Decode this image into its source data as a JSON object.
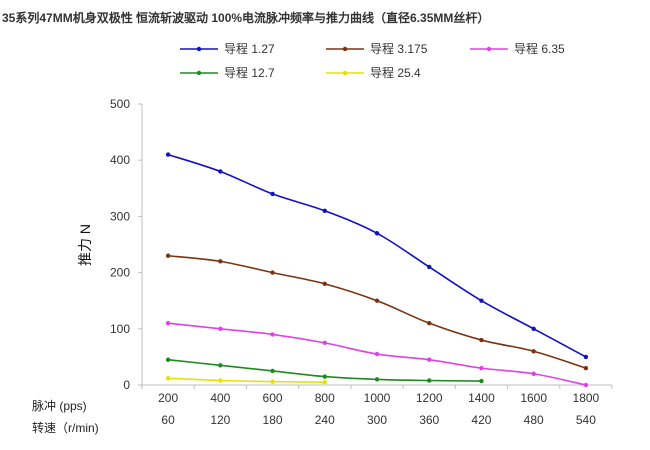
{
  "chart_data": {
    "type": "line",
    "title": "35系列47MM机身双极性 恒流斩波驱动 100%电流脉冲频率与推力曲线（直径6.35MM丝杆）",
    "ylabel": "推力  N",
    "xlabel": "",
    "ylim": [
      0,
      500
    ],
    "yticks": [
      0,
      100,
      200,
      300,
      400,
      500
    ],
    "grid": false,
    "legend_position": "top",
    "categories": [
      "200",
      "400",
      "600",
      "800",
      "1000",
      "1200",
      "1400",
      "1600",
      "1800"
    ],
    "secondary_categories": [
      "60",
      "120",
      "180",
      "240",
      "300",
      "360",
      "420",
      "480",
      "540"
    ],
    "x_row_label_primary": "脉冲     (pps)",
    "x_row_label_secondary": "转速（r/min)",
    "series": [
      {
        "name": "导程 1.27",
        "color": "#1010c8",
        "values": [
          410,
          380,
          340,
          310,
          270,
          210,
          150,
          100,
          50
        ]
      },
      {
        "name": "导程 3.175",
        "color": "#7a3310",
        "values": [
          230,
          220,
          200,
          180,
          150,
          110,
          80,
          60,
          30
        ]
      },
      {
        "name": "导程  6.35",
        "color": "#e040e8",
        "values": [
          110,
          100,
          90,
          75,
          55,
          45,
          30,
          20,
          0
        ]
      },
      {
        "name": "导程   12.7",
        "color": "#1e8a1e",
        "values": [
          45,
          35,
          25,
          15,
          10,
          8,
          7,
          null,
          null
        ]
      },
      {
        "name": "导程   25.4",
        "color": "#e8e000",
        "values": [
          12,
          8,
          6,
          5,
          null,
          null,
          null,
          null,
          null
        ]
      }
    ]
  }
}
